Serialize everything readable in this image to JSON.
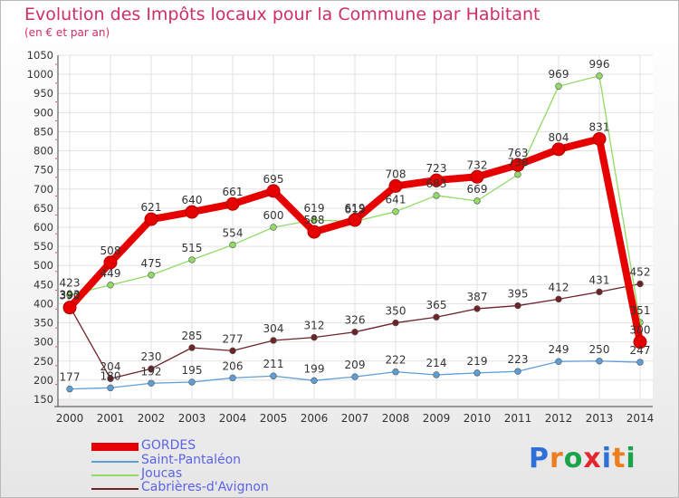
{
  "chart_data": {
    "type": "line",
    "title": "Evolution des Impôts locaux pour la Commune par Habitant",
    "subtitle": "(en € et par an)",
    "x": [
      "2000",
      "2001",
      "2002",
      "2003",
      "2004",
      "2005",
      "2006",
      "2007",
      "2008",
      "2009",
      "2010",
      "2011",
      "2012",
      "2013",
      "2014"
    ],
    "yticks": [
      "150",
      "200",
      "250",
      "300",
      "350",
      "400",
      "450",
      "500",
      "550",
      "600",
      "650",
      "700",
      "750",
      "800",
      "850",
      "900",
      "950",
      "1000",
      "1050"
    ],
    "ylim": [
      150,
      1050
    ],
    "grid": true,
    "legend_position": "bottom-left",
    "series": [
      {
        "name": "GORDES",
        "color": "#e60000",
        "values": [
          390,
          508,
          621,
          640,
          661,
          695,
          588,
          619,
          708,
          723,
          732,
          763,
          804,
          831,
          300
        ],
        "labels": [
          "390",
          "508",
          "621",
          "640",
          "661",
          "695",
          "588",
          "619",
          "708",
          "723",
          "732",
          "763",
          "804",
          "831",
          "300"
        ]
      },
      {
        "name": "Saint-Pantaléon",
        "color": "#5d9ed6",
        "values": [
          177,
          180,
          192,
          195,
          206,
          211,
          199,
          209,
          222,
          214,
          219,
          223,
          249,
          250,
          247
        ],
        "labels": [
          "177",
          "180",
          "192",
          "195",
          "206",
          "211",
          "199",
          "209",
          "222",
          "214",
          "219",
          "223",
          "249",
          "250",
          "247"
        ]
      },
      {
        "name": "Joucas",
        "color": "#90da65",
        "values": [
          423,
          449,
          475,
          515,
          554,
          600,
          619,
          615,
          641,
          683,
          669,
          738,
          969,
          996,
          351
        ],
        "labels": [
          "423",
          "449",
          "475",
          "515",
          "554",
          "600",
          "619",
          "615",
          "641",
          "683",
          "669",
          "738",
          "969",
          "996",
          "351"
        ]
      },
      {
        "name": "Cabrières-d'Avignon",
        "color": "#6e2328",
        "values": [
          393,
          204,
          230,
          285,
          277,
          304,
          312,
          326,
          350,
          365,
          387,
          395,
          412,
          431,
          452
        ],
        "labels": [
          "393",
          "204",
          "230",
          "285",
          "277",
          "304",
          "312",
          "326",
          "350",
          "365",
          "387",
          "395",
          "412",
          "431",
          "452"
        ]
      }
    ]
  },
  "logo": {
    "text": "Proxiti",
    "letters": [
      "P",
      "r",
      "o",
      "x",
      "i",
      "t",
      "i"
    ],
    "colors": [
      "#2e6fd8",
      "#ee7d1e",
      "#1aa34a",
      "#e6262e",
      "#2e6fd8",
      "#ee7d1e",
      "#1aa34a"
    ]
  }
}
